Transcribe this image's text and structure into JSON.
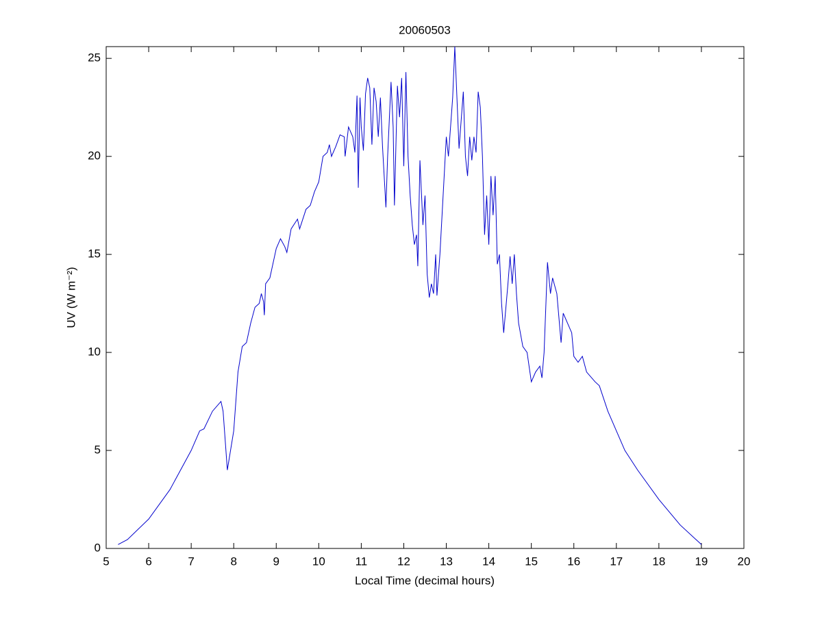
{
  "chart_data": {
    "type": "line",
    "title": "20060503",
    "xlabel": "Local Time (decimal hours)",
    "ylabel": "UV (W m⁻²)",
    "xlim": [
      5,
      20
    ],
    "ylim": [
      0,
      25.6
    ],
    "xticks": [
      5,
      6,
      7,
      8,
      9,
      10,
      11,
      12,
      13,
      14,
      15,
      16,
      17,
      18,
      19,
      20
    ],
    "yticks": [
      0,
      5,
      10,
      15,
      20,
      25
    ],
    "series": [
      {
        "color": "#0000cc",
        "x": [
          5.28,
          5.5,
          6.0,
          6.5,
          7.0,
          7.2,
          7.3,
          7.5,
          7.7,
          7.75,
          7.85,
          8.0,
          8.1,
          8.2,
          8.3,
          8.4,
          8.5,
          8.6,
          8.65,
          8.7,
          8.72,
          8.75,
          8.85,
          9.0,
          9.1,
          9.2,
          9.25,
          9.35,
          9.5,
          9.55,
          9.7,
          9.8,
          9.9,
          10.0,
          10.1,
          10.2,
          10.25,
          10.3,
          10.4,
          10.5,
          10.6,
          10.62,
          10.7,
          10.8,
          10.85,
          10.9,
          10.93,
          10.97,
          11.0,
          11.05,
          11.1,
          11.15,
          11.2,
          11.25,
          11.3,
          11.35,
          11.4,
          11.45,
          11.5,
          11.58,
          11.62,
          11.7,
          11.75,
          11.78,
          11.85,
          11.9,
          11.95,
          12.0,
          12.05,
          12.1,
          12.15,
          12.2,
          12.25,
          12.3,
          12.33,
          12.38,
          12.45,
          12.5,
          12.55,
          12.6,
          12.65,
          12.7,
          12.75,
          12.78,
          12.85,
          12.9,
          12.95,
          13.0,
          13.05,
          13.1,
          13.15,
          13.2,
          13.25,
          13.3,
          13.4,
          13.45,
          13.5,
          13.55,
          13.6,
          13.65,
          13.7,
          13.75,
          13.8,
          13.85,
          13.9,
          13.95,
          14.0,
          14.05,
          14.1,
          14.15,
          14.2,
          14.25,
          14.3,
          14.35,
          14.45,
          14.5,
          14.55,
          14.6,
          14.65,
          14.7,
          14.8,
          14.9,
          15.0,
          15.1,
          15.2,
          15.25,
          15.3,
          15.38,
          15.45,
          15.5,
          15.6,
          15.7,
          15.75,
          15.85,
          15.95,
          16.0,
          16.1,
          16.2,
          16.3,
          16.5,
          16.6,
          16.8,
          17.0,
          17.2,
          17.5,
          18.0,
          18.5,
          19.0
        ],
        "values": [
          0.2,
          0.45,
          1.5,
          3.0,
          5.0,
          6.0,
          6.1,
          7.0,
          7.5,
          7.0,
          4.0,
          6.0,
          9.0,
          10.3,
          10.5,
          11.5,
          12.3,
          12.5,
          13.0,
          12.6,
          11.9,
          13.5,
          13.8,
          15.3,
          15.8,
          15.4,
          15.1,
          16.3,
          16.8,
          16.3,
          17.3,
          17.5,
          18.2,
          18.7,
          20.0,
          20.2,
          20.6,
          20.0,
          20.5,
          21.1,
          21.0,
          20.0,
          21.5,
          21.0,
          20.2,
          23.1,
          18.4,
          23.0,
          21.5,
          20.3,
          23.2,
          24.0,
          23.5,
          20.6,
          23.5,
          22.8,
          21.0,
          23.0,
          20.5,
          17.4,
          20.0,
          23.8,
          21.5,
          17.5,
          23.6,
          22.0,
          24.0,
          19.5,
          24.3,
          20.0,
          18.0,
          16.5,
          15.5,
          16.0,
          14.4,
          19.8,
          16.5,
          18.0,
          14.0,
          12.8,
          13.5,
          13.0,
          15.0,
          12.9,
          15.0,
          17.0,
          19.0,
          21.0,
          20.0,
          21.5,
          23.0,
          25.6,
          23.0,
          20.4,
          23.3,
          20.0,
          19.0,
          21.0,
          19.8,
          21.0,
          20.2,
          23.3,
          22.5,
          20.0,
          16.0,
          18.0,
          15.5,
          19.0,
          17.0,
          19.0,
          14.5,
          15.0,
          12.5,
          11.0,
          13.5,
          14.9,
          13.5,
          15.0,
          13.0,
          11.5,
          10.3,
          10.0,
          8.5,
          9.0,
          9.3,
          8.7,
          10.0,
          14.6,
          13.0,
          13.8,
          13.0,
          10.5,
          12.0,
          11.5,
          11.0,
          9.8,
          9.5,
          9.8,
          9.0,
          8.5,
          8.3,
          7.0,
          6.0,
          5.0,
          4.0,
          2.5,
          1.2,
          0.2
        ]
      }
    ]
  }
}
